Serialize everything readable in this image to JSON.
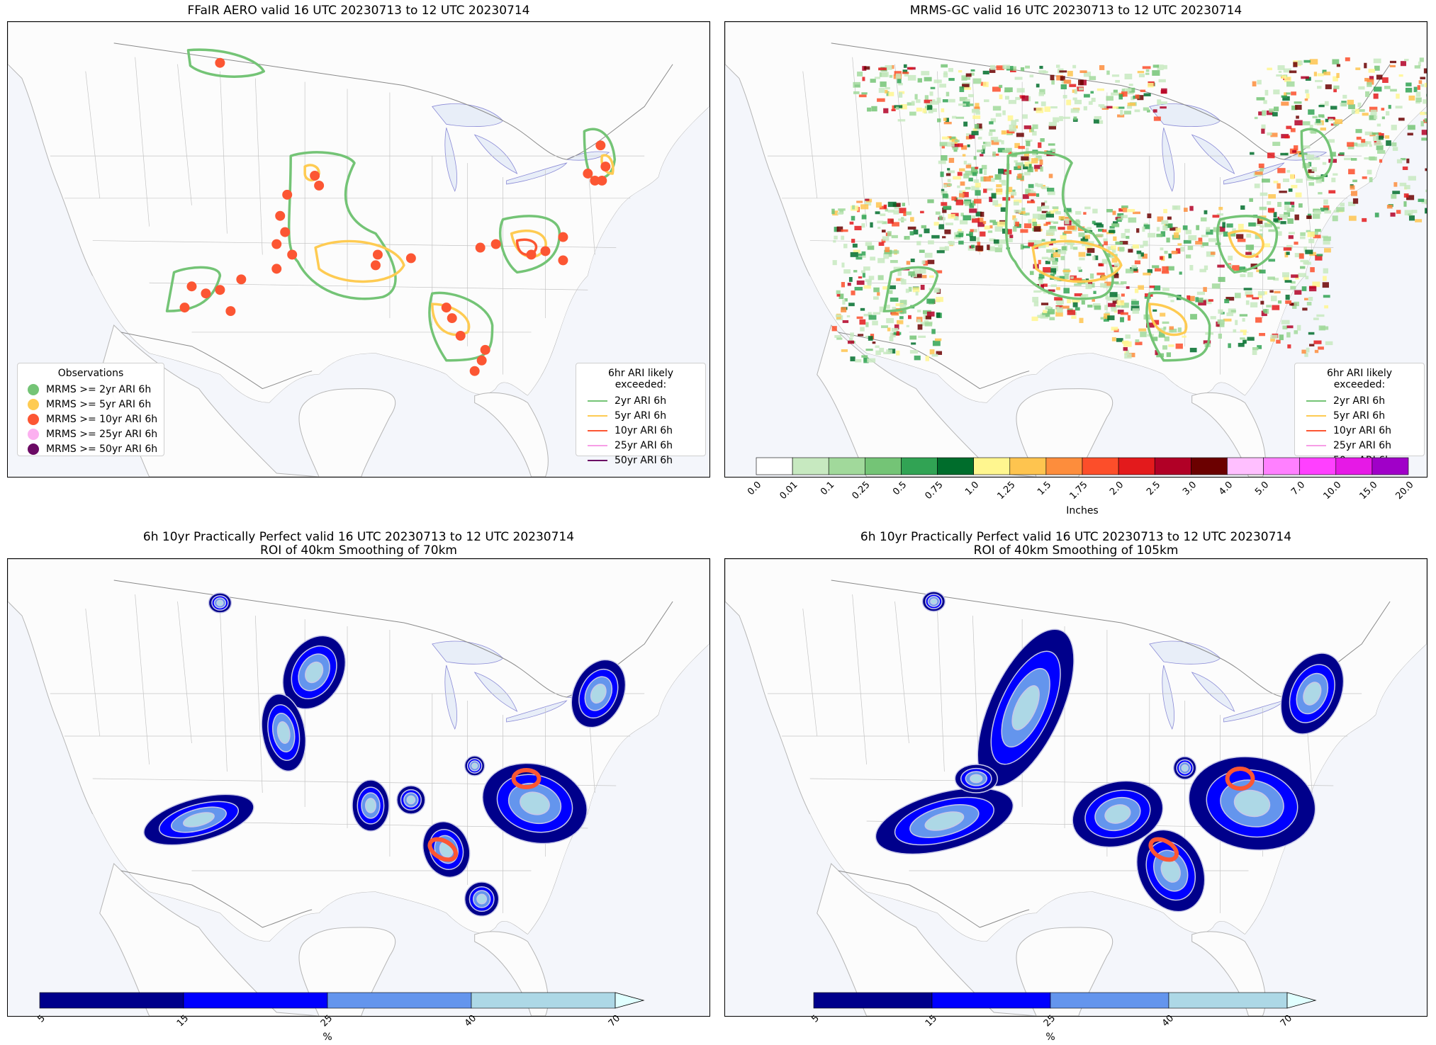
{
  "panels": [
    {
      "id": "aero",
      "title": "FFaIR AERO valid 16 UTC 20230713 to 12 UTC 20230714"
    },
    {
      "id": "mrms",
      "title": "MRMS-GC valid 16 UTC 20230713 to 12 UTC 20230714"
    },
    {
      "id": "pp70",
      "title": "6h 10yr Practically Perfect valid 16 UTC 20230713 to 12 UTC 20230714",
      "subtitle": "ROI of 40km Smoothing of 70km"
    },
    {
      "id": "pp105",
      "title": "6h 10yr Practically Perfect valid 16 UTC 20230713 to 12 UTC 20230714",
      "subtitle": "ROI of 40km Smoothing of 105km"
    }
  ],
  "observations_legend": {
    "title": "Observations",
    "items": [
      {
        "label": "MRMS >= 2yr ARI 6h",
        "color": "#74c476"
      },
      {
        "label": "MRMS >= 5yr ARI 6h",
        "color": "#fecb52"
      },
      {
        "label": "MRMS >= 10yr ARI 6h",
        "color": "#fc5633"
      },
      {
        "label": "MRMS >= 25yr ARI 6h",
        "color": "#fcb0f0"
      },
      {
        "label": "MRMS >= 50yr ARI 6h",
        "color": "#6b0a64"
      }
    ]
  },
  "ari_legend": {
    "title": "6hr ARI likely exceeded:",
    "items": [
      {
        "label": "2yr ARI 6h",
        "color": "#74c476"
      },
      {
        "label": "5yr ARI 6h",
        "color": "#fecb52"
      },
      {
        "label": "10yr ARI 6h",
        "color": "#fc5633"
      },
      {
        "label": "25yr ARI 6h",
        "color": "#f79ee6"
      },
      {
        "label": "50yr ARI 6h",
        "color": "#6b0a64"
      }
    ]
  },
  "precip_colorbar": {
    "label": "Inches",
    "ticks": [
      "0.0",
      "0.01",
      "0.1",
      "0.25",
      "0.5",
      "0.75",
      "1.0",
      "1.25",
      "1.5",
      "1.75",
      "2.0",
      "2.5",
      "3.0",
      "4.0",
      "5.0",
      "7.0",
      "10.0",
      "15.0",
      "20.0"
    ],
    "colors": [
      "#ffffff",
      "#c7e9c0",
      "#a1d99b",
      "#74c476",
      "#31a354",
      "#006d2c",
      "#fff68f",
      "#fec44f",
      "#fd8d3c",
      "#fc4e2a",
      "#e31a1c",
      "#b10026",
      "#6b0000",
      "#ffbfff",
      "#ff80ff",
      "#ff40ff",
      "#e619e6",
      "#a000c8"
    ]
  },
  "prob_colorbar": {
    "label": "%",
    "ticks": [
      "5",
      "15",
      "25",
      "40",
      "70"
    ],
    "colors": [
      "#00008b",
      "#0000ff",
      "#6495ed",
      "#add8e6",
      "#e0ffff"
    ]
  },
  "colors": {
    "ocean": "#f4f6fb",
    "land": "#fcfcfc",
    "lake": "#e8eef8",
    "border": "#9a9a9a"
  }
}
